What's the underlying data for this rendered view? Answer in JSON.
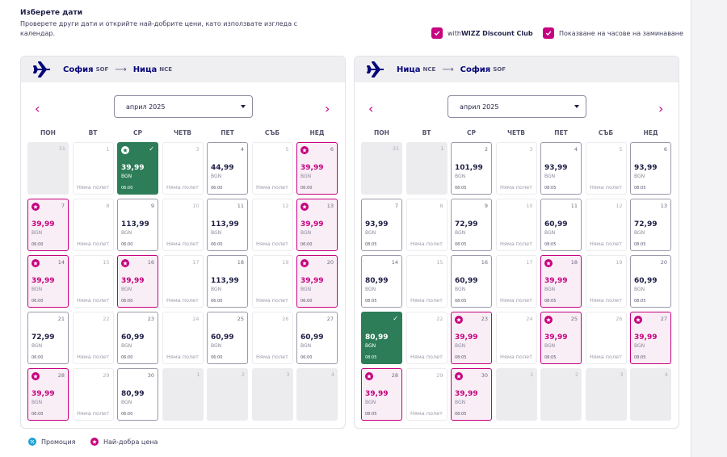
{
  "header": {
    "title": "Изберете дати",
    "subtitle": "Проверете други дати и открийте най-добрите цени, като използвате изгледа с календар."
  },
  "toggles": [
    {
      "prefix": "with ",
      "strong": "WIZZ Discount Club",
      "checked": true
    },
    {
      "prefix": "Показване на часове на заминаване",
      "strong": "",
      "checked": true
    }
  ],
  "colors": {
    "accent": "#c6007e",
    "selected": "#2d7d59",
    "brand": "#06067a",
    "promo": "#1aa0d8"
  },
  "weekdays": [
    "ПОН",
    "ВТ",
    "СР",
    "ЧЕТВ",
    "ПЕТ",
    "СЪБ",
    "НЕД"
  ],
  "no_flight_label": "Няма полет",
  "calendars": [
    {
      "from_city": "София",
      "from_code": "SOF",
      "to_city": "Ница",
      "to_code": "NCE",
      "month": "април 2025",
      "days": [
        {
          "d": "31",
          "t": "other"
        },
        {
          "d": "1",
          "t": "nofl"
        },
        {
          "d": "2",
          "t": "sel",
          "star": true,
          "price": "39,99",
          "cur": "BGN",
          "time": "06:00"
        },
        {
          "d": "3",
          "t": "nofl"
        },
        {
          "d": "4",
          "t": "std",
          "price": "44,99",
          "cur": "BGN",
          "time": "06:00"
        },
        {
          "d": "5",
          "t": "nofl"
        },
        {
          "d": "6",
          "t": "best",
          "star": true,
          "price": "39,99",
          "cur": "BGN",
          "time": "06:00"
        },
        {
          "d": "7",
          "t": "best",
          "star": true,
          "price": "39,99",
          "cur": "BGN",
          "time": "06:00"
        },
        {
          "d": "8",
          "t": "nofl"
        },
        {
          "d": "9",
          "t": "std",
          "price": "113,99",
          "cur": "BGN",
          "time": "06:00"
        },
        {
          "d": "10",
          "t": "nofl"
        },
        {
          "d": "11",
          "t": "std",
          "price": "113,99",
          "cur": "BGN",
          "time": "06:00"
        },
        {
          "d": "12",
          "t": "nofl"
        },
        {
          "d": "13",
          "t": "best",
          "star": true,
          "price": "39,99",
          "cur": "BGN",
          "time": "06:00"
        },
        {
          "d": "14",
          "t": "best",
          "star": true,
          "price": "39,99",
          "cur": "BGN",
          "time": "06:00"
        },
        {
          "d": "15",
          "t": "nofl"
        },
        {
          "d": "16",
          "t": "best",
          "star": true,
          "price": "39,99",
          "cur": "BGN",
          "time": "06:00"
        },
        {
          "d": "17",
          "t": "nofl"
        },
        {
          "d": "18",
          "t": "std",
          "price": "113,99",
          "cur": "BGN",
          "time": "06:00"
        },
        {
          "d": "19",
          "t": "nofl"
        },
        {
          "d": "20",
          "t": "best",
          "star": true,
          "price": "39,99",
          "cur": "BGN",
          "time": "06:00"
        },
        {
          "d": "21",
          "t": "std",
          "price": "72,99",
          "cur": "BGN",
          "time": "06:00"
        },
        {
          "d": "22",
          "t": "nofl"
        },
        {
          "d": "23",
          "t": "std",
          "price": "60,99",
          "cur": "BGN",
          "time": "06:00"
        },
        {
          "d": "24",
          "t": "nofl"
        },
        {
          "d": "25",
          "t": "std",
          "price": "60,99",
          "cur": "BGN",
          "time": "06:00"
        },
        {
          "d": "26",
          "t": "nofl"
        },
        {
          "d": "27",
          "t": "std",
          "price": "60,99",
          "cur": "BGN",
          "time": "06:00"
        },
        {
          "d": "28",
          "t": "best",
          "star": true,
          "price": "39,99",
          "cur": "BGN",
          "time": "06:00"
        },
        {
          "d": "29",
          "t": "nofl"
        },
        {
          "d": "30",
          "t": "std",
          "price": "80,99",
          "cur": "BGN",
          "time": "06:00"
        },
        {
          "d": "1",
          "t": "other"
        },
        {
          "d": "2",
          "t": "other"
        },
        {
          "d": "3",
          "t": "other"
        },
        {
          "d": "4",
          "t": "other"
        }
      ]
    },
    {
      "from_city": "Ница",
      "from_code": "NCE",
      "to_city": "София",
      "to_code": "SOF",
      "month": "април 2025",
      "days": [
        {
          "d": "31",
          "t": "other"
        },
        {
          "d": "1",
          "t": "other"
        },
        {
          "d": "2",
          "t": "std",
          "price": "101,99",
          "cur": "BGN",
          "time": "08:05"
        },
        {
          "d": "3",
          "t": "nofl"
        },
        {
          "d": "4",
          "t": "std",
          "price": "93,99",
          "cur": "BGN",
          "time": "08:05"
        },
        {
          "d": "5",
          "t": "nofl"
        },
        {
          "d": "6",
          "t": "std",
          "price": "93,99",
          "cur": "BGN",
          "time": "08:05"
        },
        {
          "d": "7",
          "t": "std",
          "price": "93,99",
          "cur": "BGN",
          "time": "08:05"
        },
        {
          "d": "8",
          "t": "nofl"
        },
        {
          "d": "9",
          "t": "std",
          "price": "72,99",
          "cur": "BGN",
          "time": "08:05"
        },
        {
          "d": "10",
          "t": "nofl"
        },
        {
          "d": "11",
          "t": "std",
          "price": "60,99",
          "cur": "BGN",
          "time": "08:05"
        },
        {
          "d": "12",
          "t": "nofl"
        },
        {
          "d": "13",
          "t": "std",
          "price": "72,99",
          "cur": "BGN",
          "time": "08:05"
        },
        {
          "d": "14",
          "t": "std",
          "price": "80,99",
          "cur": "BGN",
          "time": "08:05"
        },
        {
          "d": "15",
          "t": "nofl"
        },
        {
          "d": "16",
          "t": "std",
          "price": "60,99",
          "cur": "BGN",
          "time": "08:05"
        },
        {
          "d": "17",
          "t": "nofl"
        },
        {
          "d": "18",
          "t": "best",
          "star": true,
          "price": "39,99",
          "cur": "BGN",
          "time": "08:05"
        },
        {
          "d": "19",
          "t": "nofl"
        },
        {
          "d": "20",
          "t": "std",
          "price": "60,99",
          "cur": "BGN",
          "time": "08:05"
        },
        {
          "d": "21",
          "t": "sel",
          "price": "80,99",
          "cur": "BGN",
          "time": "08:05"
        },
        {
          "d": "22",
          "t": "nofl"
        },
        {
          "d": "23",
          "t": "best",
          "star": true,
          "price": "39,99",
          "cur": "BGN",
          "time": "08:05"
        },
        {
          "d": "24",
          "t": "nofl"
        },
        {
          "d": "25",
          "t": "best",
          "star": true,
          "price": "39,99",
          "cur": "BGN",
          "time": "08:05"
        },
        {
          "d": "26",
          "t": "nofl"
        },
        {
          "d": "27",
          "t": "best",
          "star": true,
          "price": "39,99",
          "cur": "BGN",
          "time": "08:05"
        },
        {
          "d": "28",
          "t": "best",
          "star": true,
          "price": "39,99",
          "cur": "BGN",
          "time": "08:05"
        },
        {
          "d": "29",
          "t": "nofl"
        },
        {
          "d": "30",
          "t": "best",
          "star": true,
          "price": "39,99",
          "cur": "BGN",
          "time": "08:05"
        },
        {
          "d": "1",
          "t": "other"
        },
        {
          "d": "2",
          "t": "other"
        },
        {
          "d": "3",
          "t": "other"
        },
        {
          "d": "4",
          "t": "other"
        }
      ]
    }
  ],
  "legend": {
    "promo": "Промоция",
    "best": "Най-добра цена"
  }
}
